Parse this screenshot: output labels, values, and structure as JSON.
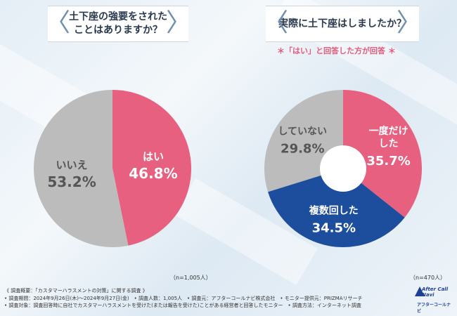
{
  "left_question": {
    "line1": "土下座の強要をされた",
    "line2": "ことはありますか？"
  },
  "right_question": {
    "line1": "実際に土下座はしましたか？"
  },
  "right_note": "＊「はい」と回答した方が回答 ＊",
  "colors": {
    "pink": "#e8607f",
    "gray": "#bcbcbc",
    "blue": "#1d4e9e",
    "text_on_pink": "#ffffff"
  },
  "chart_data": [
    {
      "type": "pie",
      "slices": [
        {
          "label": "はい",
          "value": 46.8,
          "value_text": "46.8%",
          "color": "#e8607f"
        },
        {
          "label": "いいえ",
          "value": 53.2,
          "value_text": "53.2%",
          "color": "#bcbcbc"
        }
      ],
      "n_text": "（n=1,005人）"
    },
    {
      "type": "pie",
      "donut": true,
      "slices": [
        {
          "label": "一度だけした",
          "label_lines": [
            "一度だけ",
            "した"
          ],
          "value": 35.7,
          "value_text": "35.7%",
          "color": "#e8607f"
        },
        {
          "label": "複数回した",
          "label_lines": [
            "複数回した"
          ],
          "value": 34.5,
          "value_text": "34.5%",
          "color": "#1d4e9e"
        },
        {
          "label": "していない",
          "label_lines": [
            "していない"
          ],
          "value": 29.8,
          "value_text": "29.8%",
          "color": "#bcbcbc"
        }
      ],
      "n_text": "（n=470人）"
    }
  ],
  "footer": {
    "line1": "《 調査概要：「カスタマーハラスメントの対策」に関する調査 》",
    "line2": "• 調査期間：2024年9月26日(木)～2024年9月27日(金)　• 調査人数：1,005人　• 調査元：アフターコールナビ株式会社　• モニター提供元：PRIZMAリサーチ",
    "line3": "• 調査対象：調査回答時に自社でカスタマーハラスメントを受けた(または報告を受けた)ことがある経営者と回答したモニター　• 調査方法：インターネット調査"
  },
  "logo": {
    "line1": "After Call Navi",
    "line2": "アフターコールナビ"
  }
}
